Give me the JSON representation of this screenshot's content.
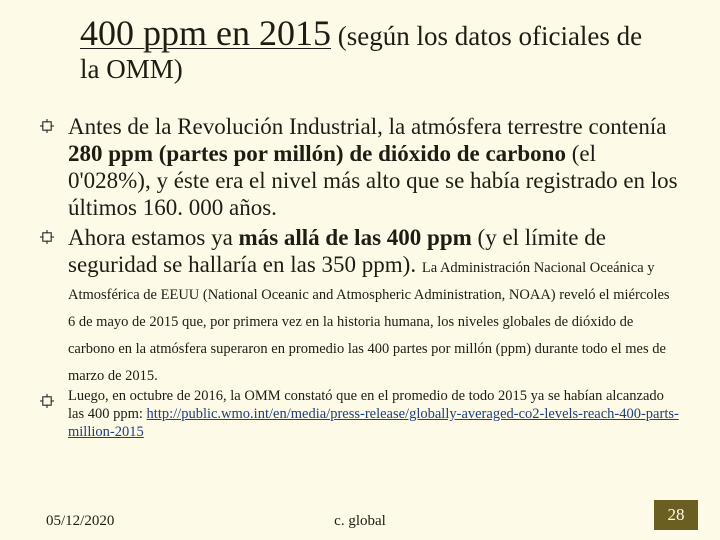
{
  "colors": {
    "background": "#fdfae8",
    "text": "#1f1c14",
    "bullet": "#2a2a2a",
    "link": "#1d3f7a",
    "badge_bg": "#6a5e20",
    "badge_text": "#fdfae8"
  },
  "title": {
    "main": "400 ppm en 2015",
    "paren": " (según los datos oficiales de la OMM)"
  },
  "bullets": [
    {
      "size": "large",
      "runs": [
        {
          "t": "Antes de la Revolución Industrial, la atmósfera terrestre contenía "
        },
        {
          "t": "280 ppm (partes por millón) de dióxido de carbono",
          "bold": true
        },
        {
          "t": " (el 0'028%), y éste era el nivel más alto que se había registrado en los últimos 160. 000 años."
        }
      ]
    },
    {
      "size": "mixed",
      "runs": [
        {
          "t": "Ahora estamos ya "
        },
        {
          "t": "más allá de las 400 ppm",
          "bold": true
        },
        {
          "t": " (y el límite de seguridad se hallaría en las 350 ppm). "
        },
        {
          "t": "La Administración Nacional Oceánica y Atmosférica de EEUU (National Oceanic and Atmospheric Administration, NOAA) reveló el miércoles 6 de mayo de 2015 que, por primera vez en la historia humana, los niveles globales de dióxido de carbono en la atmósfera superaron en promedio las 400 partes por millón (ppm) durante todo el mes de marzo de 2015.",
          "small": true
        }
      ]
    },
    {
      "size": "small",
      "runs": [
        {
          "t": "Luego, en octubre de 2016, la OMM constató que en el promedio de todo 2015 ya se habían alcanzado las 400 ppm: "
        },
        {
          "t": "http://public.wmo.int/en/media/press-release/globally-averaged-co2-levels-reach-400-parts-million-2015",
          "link": true
        }
      ]
    }
  ],
  "footer": {
    "date": "05/12/2020",
    "center": "c. global",
    "page": "28"
  }
}
